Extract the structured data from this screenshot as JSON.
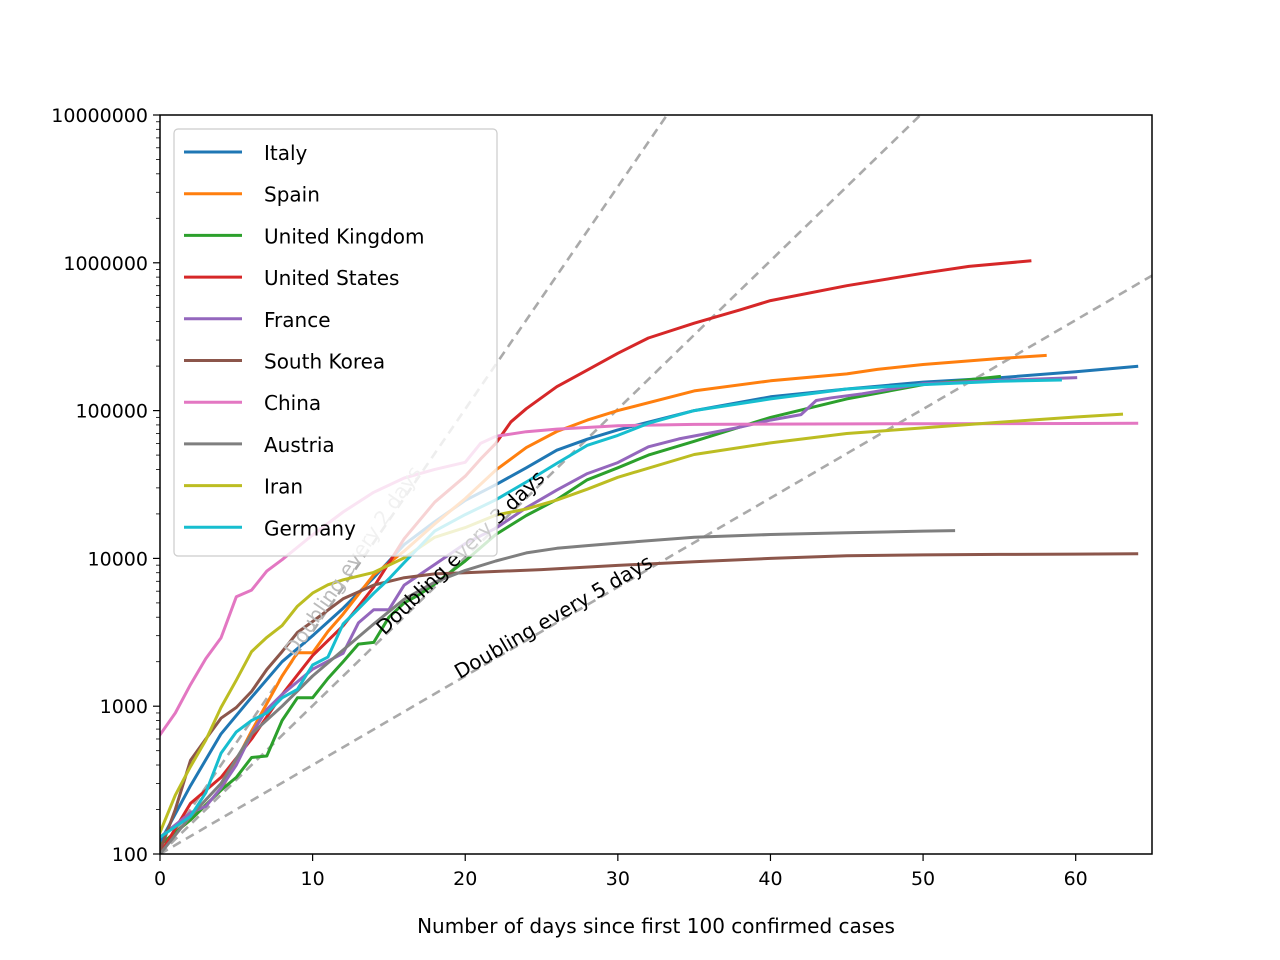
{
  "chart_data": {
    "type": "line",
    "title": "",
    "xlabel": "Number of days since first 100 confirmed cases",
    "ylabel": "",
    "xlim": [
      0,
      65
    ],
    "ylim": [
      100,
      10000000
    ],
    "yscale": "log",
    "grid": false,
    "legend": "top-left",
    "xticks": [
      0,
      10,
      20,
      30,
      40,
      50,
      60
    ],
    "xtick_labels": [
      "0",
      "10",
      "20",
      "30",
      "40",
      "50",
      "60"
    ],
    "yticks": [
      100,
      1000,
      10000,
      100000,
      1000000,
      10000000
    ],
    "ytick_labels": [
      "100",
      "1000",
      "10000",
      "100000",
      "1000000",
      "10000000"
    ],
    "reference_lines": [
      {
        "label": "Doubling every 2 days",
        "doubling_days": 2,
        "color": "#aaaaaa",
        "label_color": "#bbbbbb"
      },
      {
        "label": "Doubling every 3 days",
        "doubling_days": 3,
        "color": "#aaaaaa",
        "label_color": "#000000"
      },
      {
        "label": "Doubling every 5 days",
        "doubling_days": 5,
        "color": "#aaaaaa",
        "label_color": "#000000"
      }
    ],
    "series": [
      {
        "name": "Italy",
        "color": "#1f77b4",
        "x": [
          0,
          2,
          4,
          6,
          8,
          10,
          12,
          14,
          16,
          18,
          20,
          22,
          24,
          26,
          28,
          30,
          35,
          40,
          45,
          50,
          55,
          60,
          64
        ],
        "y": [
          120,
          290,
          650,
          1150,
          2000,
          3000,
          4600,
          7400,
          12400,
          17700,
          24700,
          31500,
          41000,
          54000,
          64000,
          74000,
          100000,
          124000,
          140000,
          156000,
          167000,
          183000,
          199000
        ]
      },
      {
        "name": "Spain",
        "color": "#ff7f0e",
        "x": [
          0,
          2,
          4,
          6,
          8,
          9,
          10,
          11,
          12,
          14,
          16,
          18,
          20,
          22,
          24,
          26,
          28,
          30,
          35,
          40,
          45,
          47,
          50,
          55,
          58
        ],
        "y": [
          115,
          170,
          270,
          680,
          1600,
          2300,
          2300,
          3200,
          4200,
          7750,
          11200,
          17100,
          25400,
          39600,
          56200,
          72200,
          86300,
          100000,
          136000,
          159000,
          177000,
          190000,
          205000,
          225000,
          236000
        ]
      },
      {
        "name": "United Kingdom",
        "color": "#2ca02c",
        "x": [
          0,
          2,
          4,
          5,
          6,
          7,
          8,
          9,
          10,
          11,
          12,
          13,
          14,
          15,
          16,
          17,
          18,
          20,
          22,
          24,
          26,
          28,
          30,
          32,
          35,
          40,
          45,
          50,
          55
        ],
        "y": [
          115,
          170,
          270,
          330,
          450,
          460,
          800,
          1140,
          1140,
          1540,
          2000,
          2630,
          2700,
          4000,
          5000,
          5700,
          6700,
          9600,
          14500,
          19500,
          25000,
          34000,
          41000,
          50000,
          62000,
          90000,
          120000,
          150000,
          170000
        ]
      },
      {
        "name": "United States",
        "color": "#d62728",
        "x": [
          0,
          2,
          4,
          6,
          8,
          10,
          12,
          14,
          16,
          18,
          20,
          21,
          22,
          23,
          24,
          26,
          28,
          30,
          32,
          35,
          38,
          40,
          45,
          50,
          53,
          57
        ],
        "y": [
          100,
          220,
          330,
          600,
          1200,
          2200,
          3500,
          6400,
          13600,
          24000,
          36000,
          47000,
          60000,
          84000,
          103000,
          145000,
          188000,
          244000,
          310000,
          390000,
          480000,
          555000,
          700000,
          850000,
          945000,
          1030000
        ]
      },
      {
        "name": "France",
        "color": "#9467bd",
        "x": [
          0,
          2,
          3,
          4,
          5,
          6,
          7,
          8,
          10,
          12,
          13,
          14,
          15,
          16,
          18,
          20,
          22,
          24,
          26,
          28,
          30,
          32,
          34,
          36,
          38,
          40,
          42,
          43,
          44,
          46,
          50,
          55,
          60
        ],
        "y": [
          130,
          190,
          210,
          280,
          400,
          650,
          950,
          1200,
          1780,
          2280,
          3660,
          4500,
          4500,
          6600,
          9100,
          12600,
          16000,
          22000,
          29000,
          37500,
          44500,
          56900,
          64300,
          70400,
          77200,
          86300,
          94000,
          117000,
          122000,
          130000,
          152000,
          160000,
          167000
        ]
      },
      {
        "name": "South Korea",
        "color": "#8c564b",
        "x": [
          0,
          1,
          2,
          3,
          4,
          5,
          6,
          7,
          8,
          9,
          10,
          12,
          14,
          16,
          18,
          20,
          25,
          30,
          35,
          40,
          45,
          50,
          55,
          60,
          64
        ],
        "y": [
          105,
          200,
          430,
          600,
          830,
          980,
          1260,
          1770,
          2340,
          3150,
          3740,
          5330,
          6600,
          7400,
          7860,
          8000,
          8400,
          8960,
          9480,
          10000,
          10420,
          10560,
          10650,
          10700,
          10750
        ]
      },
      {
        "name": "China",
        "color": "#e377c2",
        "x": [
          0,
          1,
          2,
          3,
          4,
          5,
          6,
          7,
          8,
          10,
          12,
          14,
          16,
          18,
          20,
          21,
          22,
          24,
          26,
          30,
          35,
          40,
          50,
          60,
          64
        ],
        "y": [
          640,
          900,
          1400,
          2100,
          2900,
          5500,
          6100,
          8200,
          9800,
          14400,
          20600,
          28000,
          35000,
          40000,
          44700,
          60000,
          67000,
          72000,
          75000,
          79000,
          80700,
          81000,
          81500,
          81800,
          82000
        ]
      },
      {
        "name": "Austria",
        "color": "#7f7f7f",
        "x": [
          0,
          2,
          4,
          6,
          8,
          10,
          12,
          14,
          16,
          18,
          20,
          22,
          24,
          26,
          28,
          30,
          35,
          40,
          45,
          50,
          52
        ],
        "y": [
          100,
          180,
          300,
          650,
          1000,
          1600,
          2400,
          3600,
          5300,
          6900,
          8300,
          9600,
          10900,
          11700,
          12200,
          12700,
          13900,
          14500,
          14900,
          15300,
          15400
        ]
      },
      {
        "name": "Iran",
        "color": "#bcbd22",
        "x": [
          0,
          1,
          2,
          3,
          4,
          5,
          6,
          7,
          8,
          9,
          10,
          11,
          12,
          14,
          16,
          18,
          20,
          22,
          24,
          26,
          28,
          30,
          35,
          40,
          45,
          50,
          55,
          60,
          63
        ],
        "y": [
          140,
          250,
          390,
          590,
          980,
          1500,
          2340,
          2920,
          3510,
          4750,
          5820,
          6630,
          7160,
          8040,
          10080,
          13900,
          16170,
          19640,
          21600,
          24800,
          29400,
          35400,
          50500,
          60500,
          70000,
          76400,
          83500,
          90500,
          94600
        ]
      },
      {
        "name": "Germany",
        "color": "#17becf",
        "x": [
          0,
          2,
          3,
          4,
          5,
          6,
          7,
          8,
          9,
          10,
          11,
          12,
          13,
          14,
          15,
          16,
          18,
          20,
          22,
          24,
          26,
          28,
          30,
          32,
          35,
          40,
          45,
          50,
          55,
          59
        ],
        "y": [
          130,
          180,
          260,
          480,
          670,
          800,
          900,
          1140,
          1300,
          1900,
          2150,
          3600,
          4550,
          5810,
          7270,
          9370,
          15300,
          19800,
          24900,
          32900,
          43900,
          58200,
          68000,
          82000,
          100000,
          120000,
          140000,
          150000,
          158000,
          161000
        ]
      }
    ]
  }
}
